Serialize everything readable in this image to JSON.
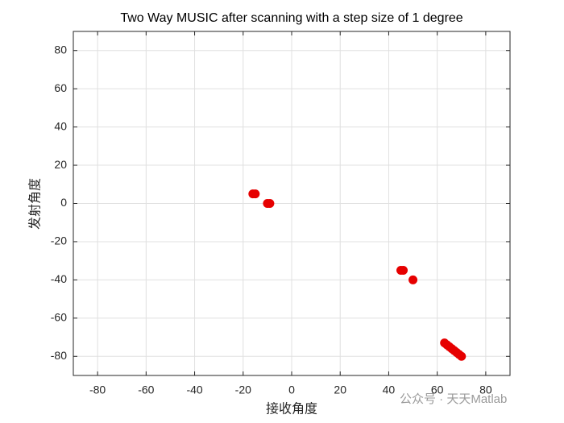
{
  "chart_data": {
    "type": "scatter",
    "title": "Two Way MUSIC after scanning with a step size of 1 degree",
    "xlabel": "接收角度",
    "ylabel": "发射角度",
    "xlim": [
      -90,
      90
    ],
    "ylim": [
      -90,
      90
    ],
    "xticks": [
      -80,
      -60,
      -40,
      -20,
      0,
      20,
      40,
      60,
      80
    ],
    "yticks": [
      -80,
      -60,
      -40,
      -20,
      0,
      20,
      40,
      60,
      80
    ],
    "grid": true,
    "color": "#e60000",
    "x": [
      -16,
      -15,
      -10,
      -9,
      45,
      46,
      50,
      63,
      64,
      65,
      66,
      67,
      68,
      69,
      70
    ],
    "values": [
      5,
      5,
      0,
      0,
      -35,
      -35,
      -40,
      -73,
      -74,
      -75,
      -76,
      -77,
      -78,
      -79,
      -80
    ]
  },
  "watermark": "公众号 · 天天Matlab"
}
